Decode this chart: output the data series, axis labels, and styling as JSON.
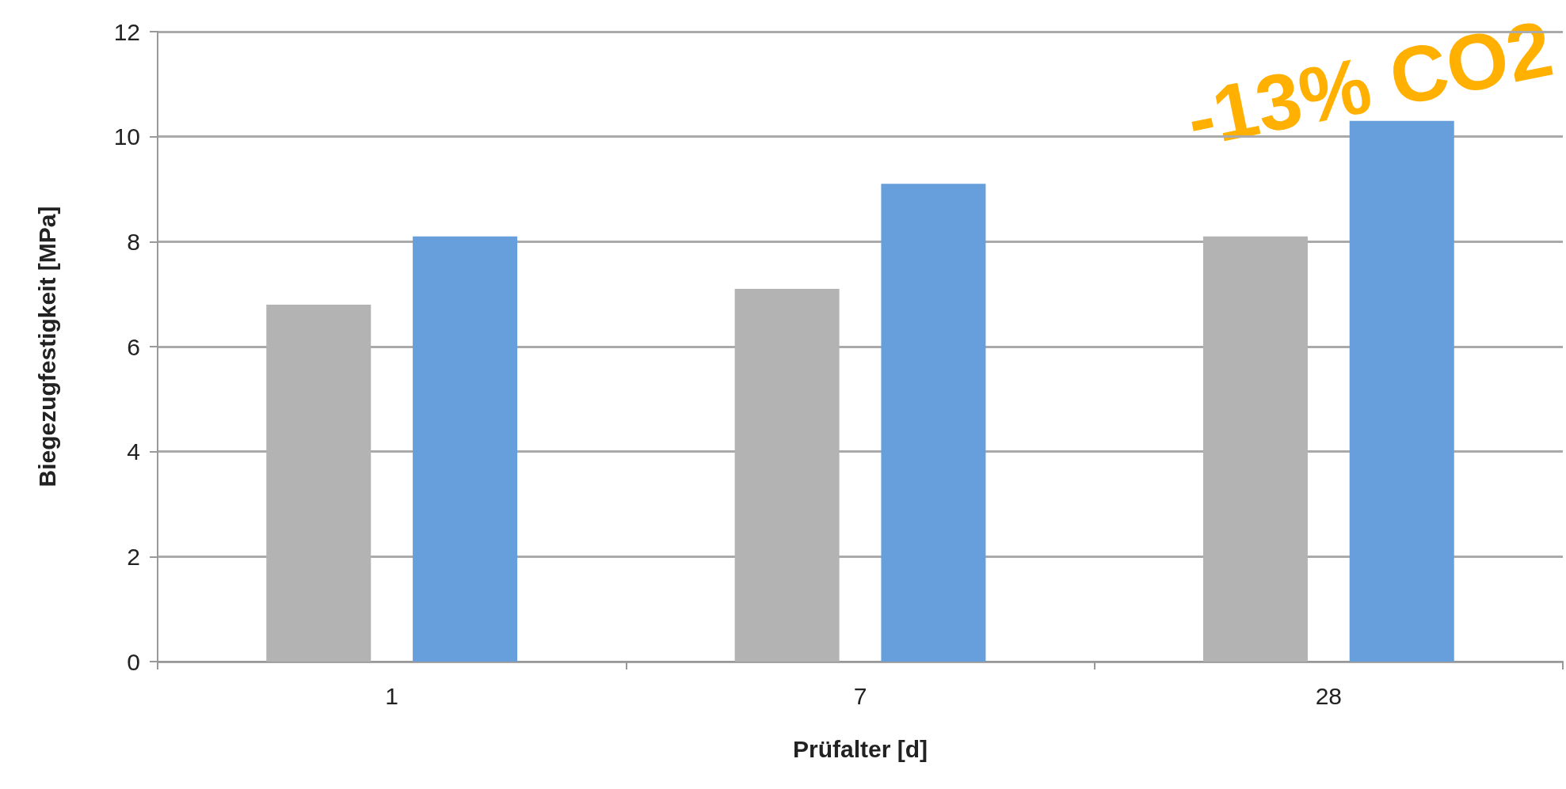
{
  "chart_data": {
    "type": "bar",
    "xlabel": "Prüfalter [d]",
    "ylabel": "Biegezugfestigkeit [MPa]",
    "categories": [
      "1",
      "7",
      "28"
    ],
    "series": [
      {
        "color": "#b3b3b3",
        "values": [
          6.8,
          7.1,
          8.1
        ]
      },
      {
        "color": "#669fdb",
        "values": [
          8.1,
          9.1,
          10.3
        ]
      }
    ],
    "ylim": [
      0,
      12
    ],
    "yticks": [
      0,
      2,
      4,
      6,
      8,
      10,
      12
    ],
    "grid": "y",
    "annotations": [
      "-13% CO2"
    ]
  }
}
